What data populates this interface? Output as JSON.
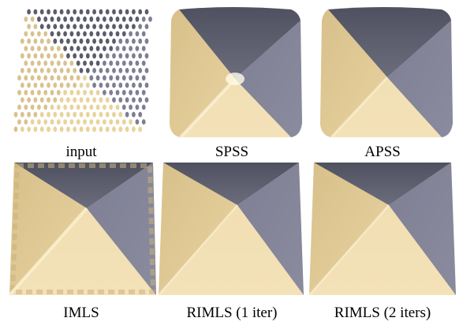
{
  "figure": {
    "panels": [
      {
        "caption": "input"
      },
      {
        "caption": "SPSS"
      },
      {
        "caption": "APSS"
      },
      {
        "caption": "IMLS"
      },
      {
        "caption": "RIMLS (1 iter)"
      },
      {
        "caption": "RIMLS (2 iters)"
      }
    ]
  },
  "colors": {
    "beige": "#e9d39a",
    "beige_light": "#f5e3b6",
    "gray": "#7e7f94",
    "dark": "#5b5d6c"
  }
}
